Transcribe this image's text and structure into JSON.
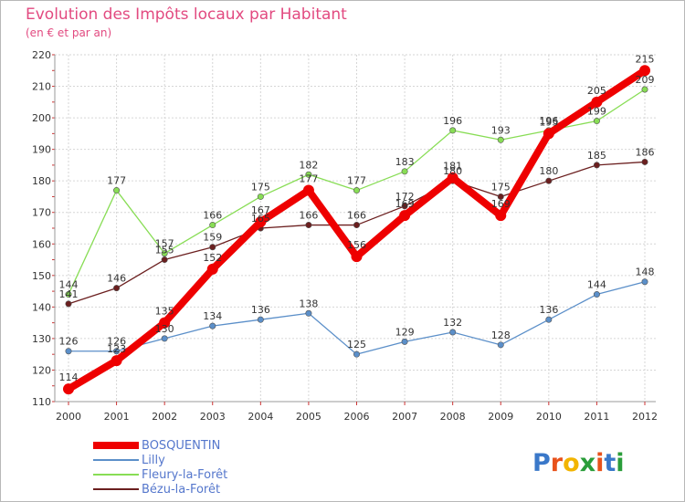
{
  "chart_data": {
    "type": "line",
    "title": "Evolution des Impôts locaux par Habitant",
    "subtitle": "(en € et par an)",
    "xlabel": "",
    "ylabel": "",
    "ylim": [
      110,
      220
    ],
    "y_ticks": [
      110,
      120,
      130,
      140,
      150,
      160,
      170,
      180,
      190,
      200,
      210,
      220
    ],
    "grid": true,
    "legend_position": "bottom-left",
    "x": [
      "2000",
      "2001",
      "2002",
      "2003",
      "2004",
      "2005",
      "2006",
      "2007",
      "2008",
      "2009",
      "2010",
      "2011",
      "2012"
    ],
    "series": [
      {
        "name": "Lilly",
        "color": "#5b8fc9",
        "values": [
          126,
          126,
          130,
          134,
          136,
          138,
          125,
          129,
          132,
          128,
          136,
          144,
          148
        ]
      },
      {
        "name": "Bézu-la-Forêt",
        "color": "#6b1f1f",
        "values": [
          141,
          146,
          155,
          159,
          165,
          166,
          166,
          172,
          180,
          175,
          180,
          185,
          186
        ]
      },
      {
        "name": "Fleury-la-Forêt",
        "color": "#88dd55",
        "values": [
          144,
          177,
          157,
          166,
          175,
          182,
          177,
          183,
          196,
          193,
          196,
          199,
          209
        ]
      },
      {
        "name": "BOSQUENTIN",
        "color": "#ee0000",
        "values": [
          114,
          123,
          135,
          152,
          167,
          177,
          156,
          169,
          181,
          169,
          195,
          205,
          215
        ]
      }
    ],
    "legend": [
      "BOSQUENTIN",
      "Lilly",
      "Fleury-la-Forêt",
      "Bézu-la-Forêt"
    ]
  },
  "brand": {
    "logo_text": "Proxiti"
  }
}
